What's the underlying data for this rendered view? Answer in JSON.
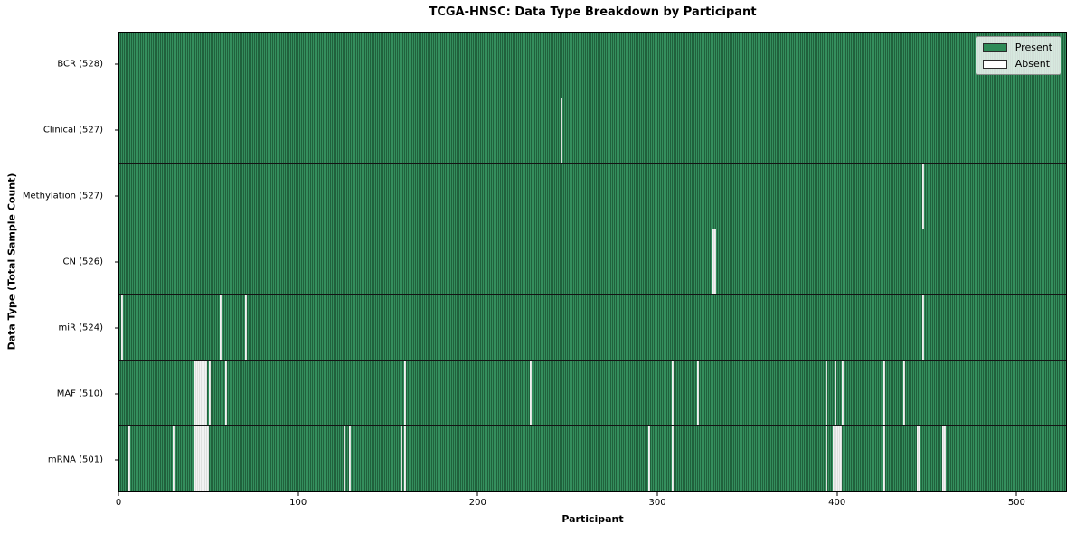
{
  "chart_data": {
    "type": "heatmap",
    "title": "TCGA-HNSC: Data Type Breakdown by Participant",
    "xlabel": "Participant",
    "ylabel": "Data Type (Total Sample Count)",
    "n_participants": 528,
    "x_ticks": [
      0,
      100,
      200,
      300,
      400,
      500
    ],
    "grid": false,
    "legend_position": "upper right",
    "colors": {
      "present": "#2e8b57",
      "present_edge": "#20613c",
      "absent": "#f2f2f2",
      "row_divider": "#141414"
    },
    "legend": [
      {
        "label": "Present",
        "color": "#2e8b57"
      },
      {
        "label": "Absent",
        "color": "#ffffff"
      }
    ],
    "rows": [
      {
        "label": "BCR (528)",
        "total": 528,
        "absent": []
      },
      {
        "label": "Clinical (527)",
        "total": 527,
        "absent": [
          246
        ]
      },
      {
        "label": "Methylation (527)",
        "total": 527,
        "absent": [
          448
        ]
      },
      {
        "label": "CN (526)",
        "total": 526,
        "absent": [
          331,
          332
        ]
      },
      {
        "label": "miR (524)",
        "total": 524,
        "absent": [
          1,
          56,
          70,
          448
        ]
      },
      {
        "label": "MAF (510)",
        "total": 510,
        "absent": [
          42,
          43,
          44,
          45,
          46,
          47,
          48,
          50,
          59,
          159,
          229,
          308,
          322,
          394,
          399,
          403,
          426,
          437
        ]
      },
      {
        "label": "mRNA (501)",
        "total": 501,
        "absent": [
          5,
          30,
          42,
          43,
          44,
          45,
          46,
          47,
          48,
          49,
          125,
          128,
          157,
          159,
          295,
          308,
          394,
          398,
          399,
          400,
          401,
          402,
          426,
          445,
          446,
          459,
          460
        ]
      }
    ]
  }
}
